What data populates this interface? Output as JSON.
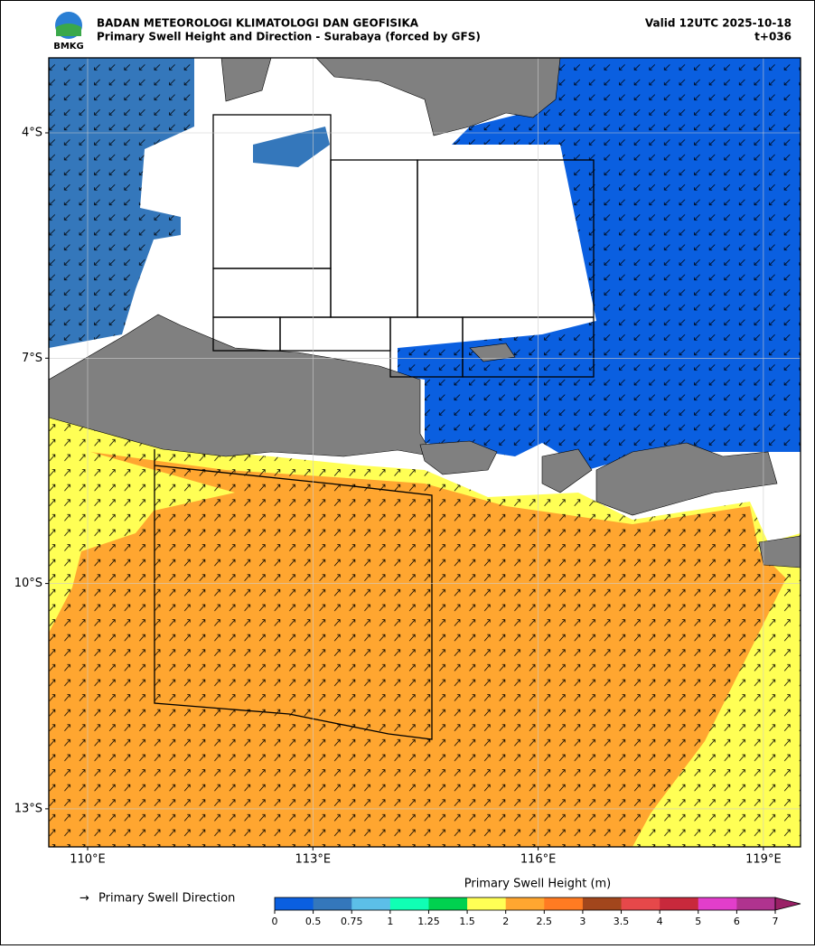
{
  "header": {
    "logo_text": "BMKG",
    "agency": "BADAN METEOROLOGI KLIMATOLOGI DAN GEOFISIKA",
    "subtitle": "Primary Swell Height and Direction - Surabaya (forced by GFS)",
    "valid": "Valid 12UTC 2025-10-18",
    "lead": "t+036"
  },
  "map": {
    "lat_labels": [
      {
        "value": -4,
        "label": "4°S"
      },
      {
        "value": -7,
        "label": "7°S"
      },
      {
        "value": -10,
        "label": "10°S"
      },
      {
        "value": -13,
        "label": "13°S"
      }
    ],
    "lon_labels": [
      {
        "value": 110,
        "label": "110°E"
      },
      {
        "value": 113,
        "label": "113°E"
      },
      {
        "value": 116,
        "label": "116°E"
      },
      {
        "value": 119,
        "label": "119°E"
      }
    ]
  },
  "legend": {
    "arrow": "→",
    "arrow_label": "Primary Swell Direction"
  },
  "colorbar": {
    "title": "Primary Swell Height (m)",
    "ticks": [
      0,
      0.5,
      0.75,
      1,
      1.25,
      1.5,
      2,
      2.5,
      3,
      3.5,
      4,
      5,
      6,
      7
    ],
    "colors": [
      "#0a5fe0",
      "#3477bb",
      "#5cbfe8",
      "#10ffb4",
      "#00d14f",
      "#ffff55",
      "#ffa630",
      "#ff7b22",
      "#a2461c",
      "#e6484a",
      "#c8293c",
      "#e23ecb",
      "#b0338f",
      "#9a2066"
    ]
  }
}
